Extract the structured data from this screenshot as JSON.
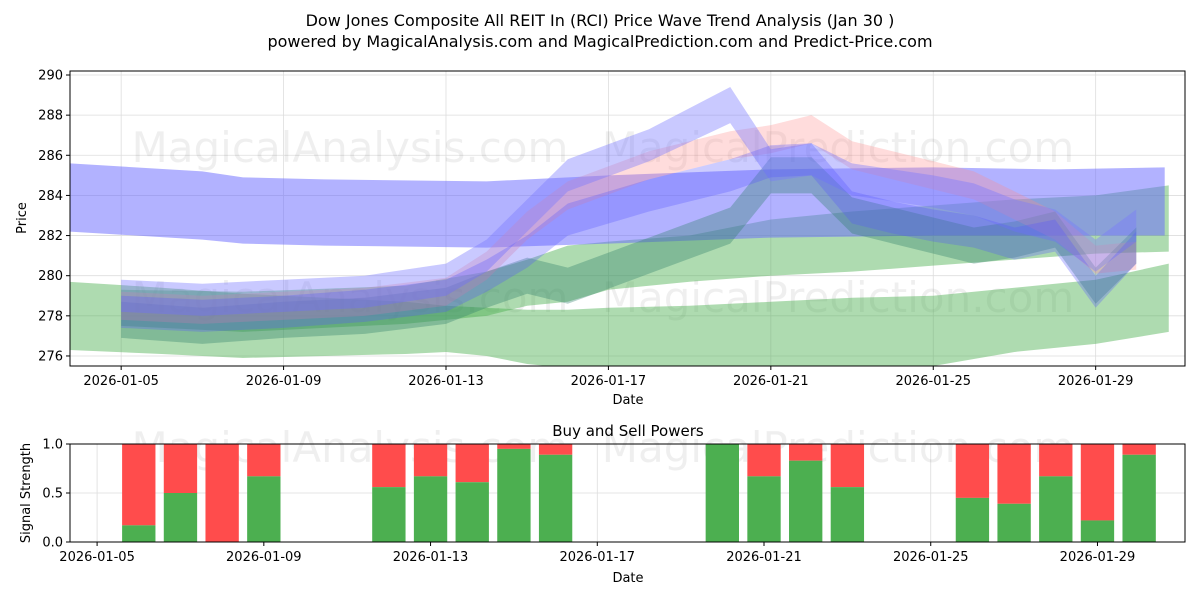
{
  "chart_data": [
    {
      "type": "area",
      "title": "Dow Jones Composite All REIT In (RCI) Price Wave Trend Analysis (Jan 30 )",
      "subtitle": "powered by MagicalAnalysis.com and MagicalPrediction.com and Predict-Price.com",
      "xlabel": "Date",
      "ylabel": "Price",
      "xlim": [
        3.74,
        31.2
      ],
      "ylim": [
        275.5,
        290.2
      ],
      "grid": true,
      "x_ticks": [
        {
          "day": 5,
          "label": "2026-01-05"
        },
        {
          "day": 9,
          "label": "2026-01-09"
        },
        {
          "day": 13,
          "label": "2026-01-13"
        },
        {
          "day": 17,
          "label": "2026-01-17"
        },
        {
          "day": 21,
          "label": "2026-01-21"
        },
        {
          "day": 25,
          "label": "2026-01-25"
        },
        {
          "day": 29,
          "label": "2026-01-29"
        }
      ],
      "y_ticks": [
        {
          "v": 276,
          "label": "276"
        },
        {
          "v": 278,
          "label": "278"
        },
        {
          "v": 280,
          "label": "280"
        },
        {
          "v": 282,
          "label": "282"
        },
        {
          "v": 284,
          "label": "284"
        },
        {
          "v": 286,
          "label": "286"
        },
        {
          "v": 288,
          "label": "288"
        },
        {
          "v": 290,
          "label": "290"
        }
      ],
      "bands": [
        {
          "name": "green-wide-low",
          "color": "#4caf50",
          "opacity": 0.45,
          "x": [
            3.7,
            6,
            8,
            10,
            12,
            13,
            14,
            15,
            16,
            17,
            19,
            21,
            23,
            25,
            27,
            29,
            30.8
          ],
          "upper": [
            279.7,
            279.4,
            279.1,
            278.9,
            278.7,
            278.5,
            278.4,
            278.3,
            278.3,
            278.4,
            278.5,
            278.7,
            278.9,
            279.0,
            279.4,
            279.8,
            280.6
          ],
          "lower": [
            276.3,
            276.1,
            275.9,
            276.0,
            276.1,
            276.2,
            276.0,
            275.6,
            275.4,
            275.3,
            275.3,
            275.3,
            275.4,
            275.5,
            276.2,
            276.6,
            277.2
          ]
        },
        {
          "name": "green-rising",
          "color": "#4caf50",
          "opacity": 0.45,
          "x": [
            5,
            8,
            12,
            14,
            15,
            16,
            17,
            19,
            21,
            23,
            25,
            27,
            29,
            30.8
          ],
          "upper": [
            279.3,
            279.2,
            279.5,
            280.2,
            280.8,
            281.5,
            281.7,
            282.0,
            282.8,
            283.2,
            283.5,
            283.8,
            284.0,
            284.5
          ],
          "lower": [
            277.5,
            277.2,
            277.6,
            278.0,
            278.5,
            278.7,
            279.3,
            279.7,
            280.0,
            280.2,
            280.5,
            280.8,
            281.1,
            281.2
          ]
        },
        {
          "name": "blue-wide-flat",
          "color": "#6666ff",
          "opacity": 0.5,
          "x": [
            3.7,
            7,
            8,
            10,
            14,
            17,
            21,
            25,
            28,
            30.7
          ],
          "upper": [
            285.6,
            285.2,
            284.9,
            284.8,
            284.7,
            285.0,
            285.3,
            285.4,
            285.3,
            285.4
          ],
          "lower": [
            282.2,
            281.8,
            281.6,
            281.5,
            281.4,
            281.6,
            281.9,
            282.0,
            282.0,
            282.0
          ]
        },
        {
          "name": "teal-wave",
          "color": "#2e7d6a",
          "opacity": 0.35,
          "x": [
            5,
            7,
            9,
            11,
            13,
            14,
            15,
            16,
            18,
            20,
            21,
            22,
            23,
            24,
            25,
            26,
            27,
            28,
            29,
            30
          ],
          "upper": [
            278.7,
            278.4,
            278.7,
            278.9,
            279.4,
            280.2,
            280.9,
            280.4,
            281.9,
            283.4,
            285.9,
            285.9,
            283.9,
            283.4,
            282.9,
            282.4,
            282.7,
            283.2,
            280.4,
            282.4
          ],
          "lower": [
            276.9,
            276.6,
            276.9,
            277.1,
            277.6,
            278.4,
            279.1,
            278.6,
            280.1,
            281.6,
            284.1,
            284.1,
            282.1,
            281.6,
            281.1,
            280.6,
            280.9,
            281.4,
            278.6,
            280.6
          ]
        },
        {
          "name": "pink-wave",
          "color": "#ff8a8a",
          "opacity": 0.3,
          "x": [
            5,
            7,
            9,
            11,
            13,
            14,
            15,
            16,
            18,
            20,
            21,
            22,
            23,
            24,
            25,
            26,
            27,
            28,
            29,
            30
          ],
          "upper": [
            279.2,
            279.0,
            279.2,
            279.4,
            279.9,
            281.2,
            283.2,
            284.7,
            286.2,
            287.2,
            287.5,
            288.0,
            286.7,
            286.2,
            285.7,
            285.2,
            284.2,
            283.2,
            281.5,
            281.7
          ],
          "lower": [
            277.8,
            277.6,
            277.8,
            278.0,
            278.5,
            279.8,
            281.8,
            283.3,
            284.8,
            285.8,
            286.1,
            286.6,
            285.3,
            284.8,
            284.3,
            283.8,
            282.8,
            281.8,
            280.1,
            280.3
          ]
        },
        {
          "name": "blue-wave-peak",
          "color": "#7777ff",
          "opacity": 0.4,
          "x": [
            5,
            7,
            9,
            11,
            13,
            14,
            15,
            16,
            18,
            20,
            21,
            22,
            23,
            24,
            25,
            26,
            27,
            28,
            29,
            30
          ],
          "upper": [
            279.8,
            279.6,
            279.8,
            280.0,
            280.6,
            281.8,
            283.8,
            285.8,
            287.3,
            289.4,
            286.3,
            286.6,
            285.6,
            285.3,
            285.0,
            284.6,
            283.8,
            283.3,
            281.8,
            283.3
          ],
          "lower": [
            278.2,
            278.0,
            278.2,
            278.4,
            279.0,
            280.2,
            282.2,
            284.2,
            285.7,
            287.6,
            284.7,
            285.0,
            284.0,
            283.7,
            283.4,
            283.0,
            282.2,
            281.7,
            280.2,
            281.7
          ]
        },
        {
          "name": "blue-wave-mid",
          "color": "#5555ff",
          "opacity": 0.3,
          "x": [
            5,
            7,
            9,
            11,
            13,
            14,
            15,
            16,
            18,
            20,
            21,
            22,
            23,
            24,
            25,
            26,
            27,
            28,
            29,
            30
          ],
          "upper": [
            279.0,
            278.8,
            279.0,
            279.3,
            279.8,
            280.8,
            282.0,
            283.6,
            284.8,
            285.8,
            286.5,
            286.6,
            284.2,
            283.7,
            283.3,
            283.0,
            282.4,
            282.8,
            280.0,
            282.2
          ],
          "lower": [
            277.4,
            277.2,
            277.4,
            277.7,
            278.2,
            279.2,
            280.4,
            282.0,
            283.2,
            284.2,
            284.9,
            285.0,
            282.6,
            282.1,
            281.7,
            281.4,
            280.8,
            281.2,
            278.4,
            280.6
          ]
        }
      ],
      "watermarks": [
        "MagicalAnalysis.com",
        "MagicalPrediction.com"
      ]
    },
    {
      "type": "bar",
      "title": "Buy and Sell Powers",
      "xlabel": "Date",
      "ylabel": "Signal Strength",
      "ylim": [
        0,
        1
      ],
      "xlim": [
        4.35,
        31.1
      ],
      "y_ticks": [
        {
          "v": 0,
          "label": "0.0"
        },
        {
          "v": 0.5,
          "label": "0.5"
        },
        {
          "v": 1,
          "label": "1.0"
        }
      ],
      "x_ticks": [
        {
          "day": 5,
          "label": "2026-01-05"
        },
        {
          "day": 9,
          "label": "2026-01-09"
        },
        {
          "day": 13,
          "label": "2026-01-13"
        },
        {
          "day": 17,
          "label": "2026-01-17"
        },
        {
          "day": 21,
          "label": "2026-01-21"
        },
        {
          "day": 25,
          "label": "2026-01-25"
        },
        {
          "day": 29,
          "label": "2026-01-29"
        }
      ],
      "days": [
        6,
        7,
        8,
        9,
        12,
        13,
        14,
        15,
        16,
        20,
        21,
        22,
        23,
        26,
        27,
        28,
        29,
        30
      ],
      "buy": [
        0.17,
        0.5,
        0.0,
        0.67,
        0.56,
        0.67,
        0.61,
        0.95,
        0.89,
        1.0,
        0.67,
        0.83,
        0.56,
        0.45,
        0.39,
        0.67,
        0.22,
        0.89
      ],
      "buy_color": "#4caf50",
      "sell_color": "#ff4c4c",
      "watermarks": [
        "MagicalAnalysis.com",
        "MagicalPrediction.com"
      ]
    }
  ]
}
